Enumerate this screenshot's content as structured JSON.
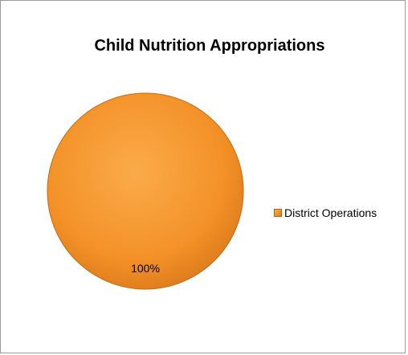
{
  "chart_data": {
    "type": "pie",
    "title": "Child Nutrition Appropriations",
    "slices": [
      {
        "label": "District Operations",
        "value": 100,
        "data_label": "100%",
        "color": "#F4922A"
      }
    ],
    "legend": {
      "position": "right",
      "entries": [
        "District Operations"
      ]
    }
  }
}
